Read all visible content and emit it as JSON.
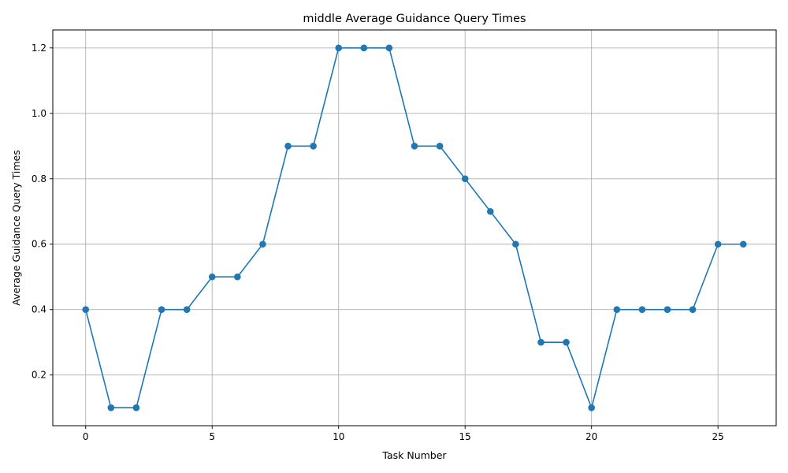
{
  "chart_data": {
    "type": "line",
    "title": "middle Average Guidance Query Times",
    "xlabel": "Task Number",
    "ylabel": "Average Guidance Query Times",
    "x": [
      0,
      1,
      2,
      3,
      4,
      5,
      6,
      7,
      8,
      9,
      10,
      11,
      12,
      13,
      14,
      15,
      16,
      17,
      18,
      19,
      20,
      21,
      22,
      23,
      24,
      25,
      26
    ],
    "series": [
      {
        "values": [
          0.4,
          0.1,
          0.1,
          0.4,
          0.4,
          0.5,
          0.5,
          0.6,
          0.9,
          0.9,
          1.2,
          1.2,
          1.2,
          0.9,
          0.9,
          0.8,
          0.7,
          0.6,
          0.3,
          0.3,
          0.1,
          0.4,
          0.4,
          0.4,
          0.4,
          0.6,
          0.6
        ],
        "color": "#1f77b4",
        "marker": "circle"
      }
    ],
    "xlim": [
      -1.3,
      27.3
    ],
    "ylim": [
      0.045,
      1.255
    ],
    "xticks": [
      0,
      5,
      10,
      15,
      20,
      25
    ],
    "xtick_labels": [
      "0",
      "5",
      "10",
      "15",
      "20",
      "25"
    ],
    "yticks": [
      0.2,
      0.4,
      0.6,
      0.8,
      1.0,
      1.2
    ],
    "ytick_labels": [
      "0.2",
      "0.4",
      "0.6",
      "0.8",
      "1.0",
      "1.2"
    ],
    "grid": true,
    "legend": "none"
  }
}
